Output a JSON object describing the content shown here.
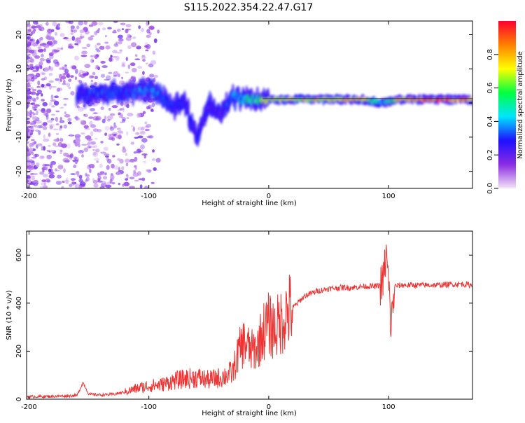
{
  "title": "S115.2022.354.22.47.G17",
  "chart_data": [
    {
      "type": "heatmap",
      "xlabel": "Height of straight line (km)",
      "ylabel": "Frequency (Hz)",
      "xlim": [
        -202,
        170
      ],
      "ylim": [
        -25,
        24
      ],
      "xticks": [
        -200,
        -100,
        0,
        100
      ],
      "yticks": [
        -20,
        -10,
        0,
        10,
        20
      ],
      "grid": false,
      "colorbar": {
        "label": "Normalized spectral amplitude",
        "range": [
          0,
          1
        ],
        "ticks": [
          0.0,
          0.2,
          0.4,
          0.6,
          0.8
        ],
        "colormap": [
          "#f4e4f8",
          "#8a2be2",
          "#1e10ff",
          "#00e5ff",
          "#00ff40",
          "#ffff00",
          "#ff8000",
          "#ff0030"
        ]
      },
      "ridge": {
        "x": [
          -160,
          -140,
          -120,
          -100,
          -90,
          -80,
          -70,
          -60,
          -50,
          -40,
          -30,
          -20,
          -10,
          0,
          20,
          50,
          80,
          95,
          110,
          140,
          170
        ],
        "y": [
          2,
          3,
          3,
          4,
          2,
          -1,
          0,
          -10,
          -1,
          -3,
          2,
          1,
          1,
          1,
          1,
          1,
          1,
          0,
          1,
          1,
          1
        ],
        "intensity": [
          0.3,
          0.35,
          0.3,
          0.4,
          0.35,
          0.3,
          0.3,
          0.3,
          0.25,
          0.25,
          0.4,
          0.5,
          0.6,
          0.7,
          0.75,
          0.75,
          0.8,
          0.4,
          0.85,
          0.95,
          0.9
        ]
      }
    },
    {
      "type": "line",
      "xlabel": "Height of straight line (km)",
      "ylabel": "SNR (10 * v/v)",
      "xlim": [
        -202,
        170
      ],
      "ylim": [
        0,
        700
      ],
      "xticks": [
        -200,
        -100,
        0,
        100
      ],
      "yticks": [
        0,
        200,
        400,
        600
      ],
      "grid": false,
      "color": "#ee3333",
      "x": [
        -200,
        -180,
        -160,
        -155,
        -150,
        -140,
        -130,
        -120,
        -110,
        -100,
        -90,
        -80,
        -70,
        -60,
        -50,
        -40,
        -30,
        -25,
        -20,
        -15,
        -10,
        -5,
        0,
        5,
        10,
        15,
        20,
        30,
        40,
        50,
        60,
        70,
        80,
        90,
        95,
        98,
        100,
        102,
        105,
        110,
        120,
        140,
        160,
        170
      ],
      "y": [
        10,
        12,
        15,
        70,
        20,
        18,
        20,
        30,
        45,
        55,
        60,
        75,
        85,
        90,
        80,
        90,
        110,
        200,
        240,
        200,
        210,
        280,
        310,
        290,
        320,
        360,
        380,
        430,
        450,
        460,
        465,
        465,
        470,
        470,
        480,
        600,
        480,
        300,
        470,
        475,
        475,
        475,
        480,
        475
      ]
    }
  ]
}
